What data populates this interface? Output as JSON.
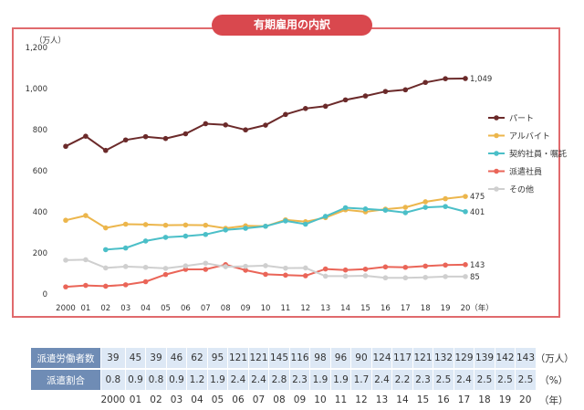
{
  "title": "有期雇用の内訳",
  "chart_data": {
    "type": "line",
    "ylabel": "（万人）",
    "x_unit": "（年）",
    "categories": [
      "2000",
      "01",
      "02",
      "03",
      "04",
      "05",
      "06",
      "07",
      "08",
      "09",
      "10",
      "11",
      "12",
      "13",
      "14",
      "15",
      "16",
      "17",
      "18",
      "19",
      "20"
    ],
    "ylim": [
      0,
      1200
    ],
    "yticks": [
      "0",
      "200",
      "400",
      "600",
      "800",
      "1,000",
      "1,200"
    ],
    "grid": false,
    "legend_position": "right",
    "series": [
      {
        "name": "パート",
        "color": "#6b2a2a",
        "values": [
          719,
          768,
          699,
          750,
          766,
          757,
          780,
          829,
          823,
          799,
          822,
          874,
          903,
          914,
          945,
          964,
          986,
          994,
          1030,
          1048,
          1049
        ],
        "end_label": "1,049"
      },
      {
        "name": "アルバイト",
        "color": "#ecb64c",
        "values": [
          359,
          382,
          322,
          340,
          338,
          335,
          336,
          335,
          320,
          332,
          330,
          361,
          352,
          372,
          410,
          400,
          413,
          422,
          449,
          464,
          475
        ],
        "end_label": "475"
      },
      {
        "name": "契約社員・嘱託",
        "color": "#4bbfc8",
        "values": [
          null,
          null,
          216,
          224,
          258,
          276,
          282,
          290,
          312,
          320,
          330,
          356,
          340,
          378,
          420,
          414,
          408,
          396,
          422,
          426,
          401
        ],
        "end_label": "401"
      },
      {
        "name": "派遣社員",
        "color": "#ea6558",
        "values": [
          35,
          42,
          38,
          45,
          60,
          95,
          120,
          120,
          143,
          116,
          96,
          92,
          89,
          122,
          117,
          121,
          132,
          130,
          136,
          141,
          143
        ],
        "end_label": "143"
      },
      {
        "name": "その他",
        "color": "#cfcfcf",
        "values": [
          165,
          167,
          127,
          134,
          130,
          125,
          137,
          150,
          133,
          135,
          138,
          126,
          127,
          87,
          87,
          89,
          79,
          79,
          81,
          85,
          85
        ],
        "end_label": "85"
      }
    ]
  },
  "table": {
    "rows": [
      {
        "label": "派遣労働者数",
        "values": [
          "39",
          "45",
          "39",
          "46",
          "62",
          "95",
          "121",
          "121",
          "145",
          "116",
          "98",
          "96",
          "90",
          "124",
          "117",
          "121",
          "132",
          "129",
          "139",
          "142",
          "143"
        ],
        "unit": "（万人）"
      },
      {
        "label": "派遣割合",
        "values": [
          "0.8",
          "0.9",
          "0.8",
          "0.9",
          "1.2",
          "1.9",
          "2.4",
          "2.4",
          "2.8",
          "2.3",
          "1.9",
          "1.9",
          "1.7",
          "2.4",
          "2.2",
          "2.3",
          "2.5",
          "2.4",
          "2.5",
          "2.5",
          "2.5"
        ],
        "unit": "（%）"
      }
    ],
    "years": [
      "2000",
      "01",
      "02",
      "03",
      "04",
      "05",
      "06",
      "07",
      "08",
      "09",
      "10",
      "11",
      "12",
      "13",
      "14",
      "15",
      "16",
      "17",
      "18",
      "19",
      "20"
    ],
    "year_unit": "（年）"
  }
}
